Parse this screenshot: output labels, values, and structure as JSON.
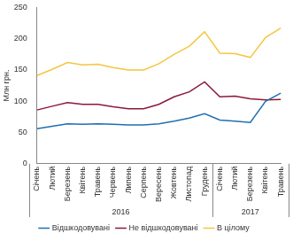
{
  "chart_data": {
    "type": "line",
    "y_label": "Млн грн.",
    "categories": [
      "Січень",
      "Лютий",
      "Березень",
      "Квітень",
      "Травень",
      "Червень",
      "Липень",
      "Серпень",
      "Вересень",
      "Жовтень",
      "Листопад",
      "Грудень",
      "Січень",
      "Лютий",
      "Березень",
      "Квітень",
      "Травень"
    ],
    "groups": [
      {
        "label": "2016",
        "count": 12
      },
      {
        "label": "2017",
        "count": 5
      }
    ],
    "series": [
      {
        "name": "Відшкодовувані",
        "color": "#1f6fb2",
        "values": [
          56,
          60,
          64,
          63,
          64,
          63,
          62,
          62,
          64,
          68,
          73,
          80,
          70,
          68,
          66,
          100,
          113
        ]
      },
      {
        "name": "Не відшкодовувані",
        "color": "#8b1a3a",
        "values": [
          86,
          92,
          98,
          95,
          95,
          91,
          88,
          88,
          95,
          107,
          115,
          131,
          107,
          108,
          104,
          102,
          103
        ]
      },
      {
        "name": "В цілому",
        "color": "#f5c542",
        "values": [
          141,
          151,
          162,
          158,
          159,
          154,
          150,
          150,
          160,
          175,
          188,
          211,
          177,
          176,
          170,
          202,
          217
        ]
      }
    ],
    "ylim": [
      0,
      250
    ],
    "yticks": [
      0,
      50,
      100,
      150,
      200,
      250
    ],
    "grid": false,
    "legend": "bottom"
  }
}
